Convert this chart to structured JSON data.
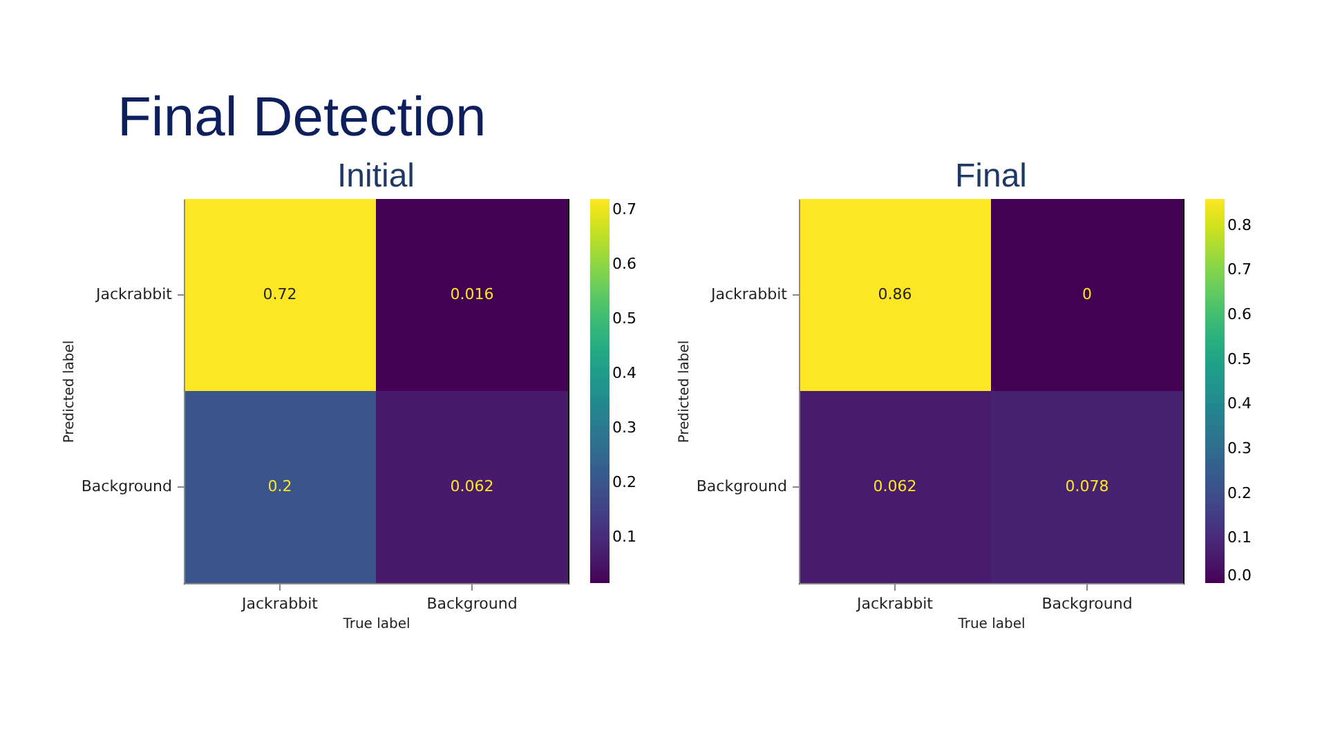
{
  "chart_data": [
    {
      "type": "other",
      "title": "Final Detection"
    },
    {
      "type": "heatmap",
      "title": "Initial",
      "xlabel": "True label",
      "ylabel": "Predicted label",
      "categories": [
        "Jackrabbit",
        "Background"
      ],
      "y_categories": [
        "Jackrabbit",
        "Background"
      ],
      "cells": [
        [
          0.72,
          0.016
        ],
        [
          0.2,
          0.062
        ]
      ],
      "clim": [
        0.016,
        0.72
      ],
      "cticks": [
        0.1,
        0.2,
        0.3,
        0.4,
        0.5,
        0.6,
        0.7
      ],
      "data_labels": true
    },
    {
      "type": "heatmap",
      "title": "Final",
      "xlabel": "True label",
      "ylabel": "Predicted label",
      "categories": [
        "Jackrabbit",
        "Background"
      ],
      "y_categories": [
        "Jackrabbit",
        "Background"
      ],
      "cells": [
        [
          0.86,
          0
        ],
        [
          0.062,
          0.078
        ]
      ],
      "clim": [
        0,
        0.86
      ],
      "cticks": [
        {
          "value": 0,
          "label": "0.0"
        },
        0.1,
        0.2,
        0.3,
        0.4,
        0.5,
        0.6,
        0.7,
        0.8
      ],
      "data_labels": true
    }
  ]
}
